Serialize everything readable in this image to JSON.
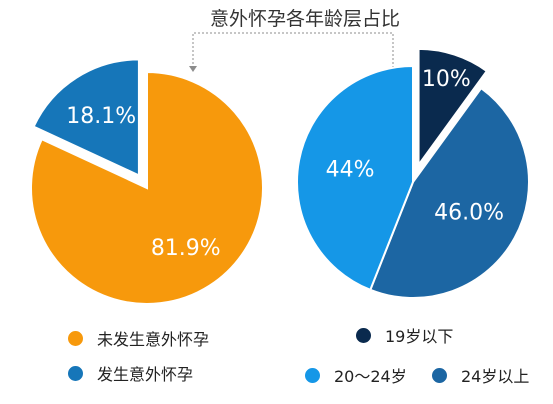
{
  "chart_data": [
    {
      "type": "pie",
      "title": "意外怀孕各年龄层占比",
      "slices": [
        {
          "label": "未发生意外怀孕",
          "value": 81.9,
          "display": "81.9%",
          "color": "#F7990C",
          "exploded": false
        },
        {
          "label": "发生意外怀孕",
          "value": 18.1,
          "display": "18.1%",
          "color": "#1676B9",
          "exploded": true
        }
      ],
      "legend_placement": "bottom"
    },
    {
      "type": "pie",
      "title": "意外怀孕各年龄层占比",
      "slices": [
        {
          "label": "19岁以下",
          "value": 10,
          "display": "10%",
          "color": "#0A2A4E",
          "exploded": true
        },
        {
          "label": "24岁以上",
          "value": 46.0,
          "display": "46.0%",
          "color": "#1C66A3",
          "exploded": false
        },
        {
          "label": "20～24岁",
          "value": 44,
          "display": "44%",
          "color": "#1597E7",
          "exploded": false
        }
      ],
      "legend_placement": "bottom"
    }
  ],
  "title": "意外怀孕各年龄层占比",
  "legend_left": [
    {
      "label": "未发生意外怀孕",
      "color": "#F7990C"
    },
    {
      "label": "发生意外怀孕",
      "color": "#1676B9"
    }
  ],
  "legend_right": [
    {
      "label": "19岁以下",
      "color": "#0A2A4E"
    },
    {
      "label": "20～24岁",
      "color": "#1597E7"
    },
    {
      "label": "24岁以上",
      "color": "#1C66A3"
    }
  ]
}
